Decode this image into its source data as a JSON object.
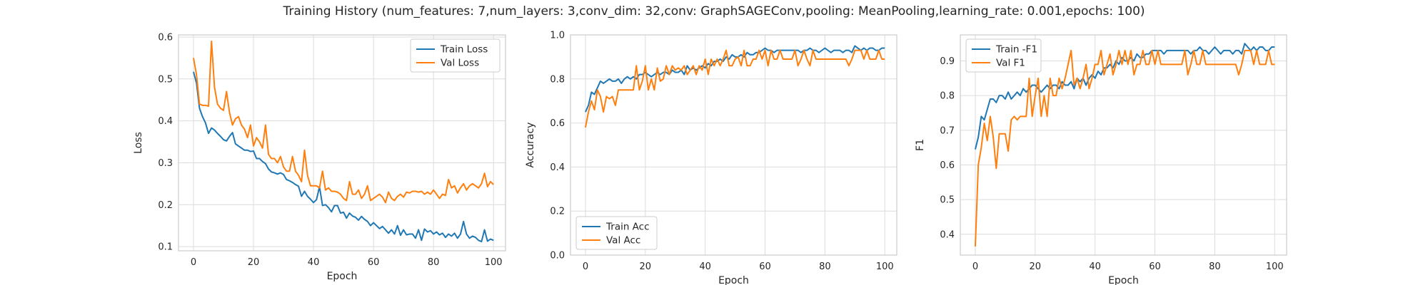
{
  "figure": {
    "suptitle": "Training History (num_features: 7,num_layers: 3,conv_dim: 32,conv: GraphSAGEConv,pooling: MeanPooling,learning_rate: 0.001,epochs: 100)"
  },
  "chart_data": [
    {
      "type": "line",
      "xlabel": "Epoch",
      "ylabel": "Loss",
      "xlim": [
        -5,
        104
      ],
      "ylim": [
        0.09,
        0.605
      ],
      "xticks": [
        0,
        20,
        40,
        60,
        80,
        100
      ],
      "yticks": [
        0.1,
        0.2,
        0.3,
        0.4,
        0.5,
        0.6
      ],
      "grid": true,
      "legend_position": "upper-right",
      "series": [
        {
          "name": "Train Loss",
          "color": "#1f77b4",
          "values": [
            0.517,
            0.49,
            0.43,
            0.41,
            0.395,
            0.37,
            0.383,
            0.378,
            0.37,
            0.363,
            0.355,
            0.352,
            0.363,
            0.372,
            0.345,
            0.34,
            0.335,
            0.33,
            0.33,
            0.327,
            0.328,
            0.31,
            0.31,
            0.303,
            0.298,
            0.285,
            0.278,
            0.276,
            0.273,
            0.276,
            0.272,
            0.26,
            0.257,
            0.253,
            0.248,
            0.244,
            0.22,
            0.232,
            0.22,
            0.213,
            0.205,
            0.212,
            0.243,
            0.198,
            0.2,
            0.193,
            0.183,
            0.198,
            0.198,
            0.18,
            0.182,
            0.168,
            0.18,
            0.173,
            0.17,
            0.163,
            0.172,
            0.165,
            0.16,
            0.15,
            0.157,
            0.15,
            0.143,
            0.148,
            0.14,
            0.132,
            0.14,
            0.13,
            0.15,
            0.127,
            0.14,
            0.128,
            0.13,
            0.13,
            0.12,
            0.14,
            0.115,
            0.142,
            0.135,
            0.138,
            0.13,
            0.135,
            0.128,
            0.132,
            0.122,
            0.13,
            0.125,
            0.132,
            0.12,
            0.13,
            0.16,
            0.13,
            0.12,
            0.125,
            0.122,
            0.115,
            0.112,
            0.14,
            0.113,
            0.118,
            0.115
          ]
        },
        {
          "name": "Val Loss",
          "color": "#ff7f0e",
          "values": [
            0.55,
            0.51,
            0.44,
            0.437,
            0.437,
            0.435,
            0.59,
            0.48,
            0.44,
            0.43,
            0.425,
            0.47,
            0.42,
            0.39,
            0.405,
            0.41,
            0.39,
            0.38,
            0.36,
            0.39,
            0.34,
            0.36,
            0.35,
            0.335,
            0.39,
            0.32,
            0.31,
            0.31,
            0.3,
            0.315,
            0.29,
            0.28,
            0.28,
            0.315,
            0.28,
            0.27,
            0.255,
            0.33,
            0.27,
            0.245,
            0.245,
            0.245,
            0.24,
            0.28,
            0.235,
            0.24,
            0.232,
            0.232,
            0.23,
            0.225,
            0.215,
            0.21,
            0.255,
            0.225,
            0.225,
            0.235,
            0.215,
            0.225,
            0.245,
            0.21,
            0.215,
            0.22,
            0.225,
            0.218,
            0.205,
            0.23,
            0.215,
            0.21,
            0.22,
            0.225,
            0.218,
            0.23,
            0.228,
            0.232,
            0.232,
            0.23,
            0.232,
            0.225,
            0.23,
            0.225,
            0.235,
            0.225,
            0.215,
            0.225,
            0.222,
            0.26,
            0.24,
            0.245,
            0.228,
            0.24,
            0.25,
            0.235,
            0.245,
            0.25,
            0.245,
            0.24,
            0.25,
            0.275,
            0.243,
            0.255,
            0.248
          ]
        }
      ]
    },
    {
      "type": "line",
      "xlabel": "Epoch",
      "ylabel": "Accuracy",
      "xlim": [
        -5,
        104
      ],
      "ylim": [
        0.0,
        1.0
      ],
      "xticks": [
        0,
        20,
        40,
        60,
        80,
        100
      ],
      "yticks": [
        0.0,
        0.2,
        0.4,
        0.6,
        0.8,
        1.0
      ],
      "grid": true,
      "legend_position": "lower-left",
      "series": [
        {
          "name": "Train Acc",
          "color": "#1f77b4",
          "values": [
            0.65,
            0.68,
            0.74,
            0.73,
            0.76,
            0.79,
            0.78,
            0.79,
            0.8,
            0.79,
            0.79,
            0.8,
            0.78,
            0.8,
            0.81,
            0.8,
            0.81,
            0.8,
            0.82,
            0.82,
            0.83,
            0.82,
            0.81,
            0.82,
            0.83,
            0.82,
            0.83,
            0.83,
            0.82,
            0.84,
            0.83,
            0.83,
            0.84,
            0.82,
            0.86,
            0.84,
            0.85,
            0.84,
            0.85,
            0.86,
            0.85,
            0.87,
            0.86,
            0.88,
            0.88,
            0.89,
            0.88,
            0.9,
            0.89,
            0.91,
            0.9,
            0.9,
            0.91,
            0.9,
            0.92,
            0.91,
            0.91,
            0.92,
            0.92,
            0.93,
            0.94,
            0.93,
            0.93,
            0.92,
            0.93,
            0.93,
            0.93,
            0.93,
            0.93,
            0.93,
            0.93,
            0.93,
            0.92,
            0.93,
            0.93,
            0.94,
            0.93,
            0.93,
            0.92,
            0.93,
            0.94,
            0.93,
            0.92,
            0.93,
            0.93,
            0.93,
            0.92,
            0.93,
            0.93,
            0.92,
            0.95,
            0.94,
            0.93,
            0.94,
            0.93,
            0.94,
            0.94,
            0.93,
            0.93,
            0.94,
            0.94
          ]
        },
        {
          "name": "Val Acc",
          "color": "#ff7f0e",
          "values": [
            0.58,
            0.65,
            0.7,
            0.66,
            0.75,
            0.72,
            0.65,
            0.72,
            0.71,
            0.72,
            0.68,
            0.75,
            0.75,
            0.75,
            0.75,
            0.75,
            0.75,
            0.86,
            0.75,
            0.79,
            0.86,
            0.75,
            0.8,
            0.75,
            0.85,
            0.79,
            0.8,
            0.86,
            0.82,
            0.86,
            0.84,
            0.85,
            0.84,
            0.86,
            0.82,
            0.84,
            0.86,
            0.82,
            0.86,
            0.84,
            0.89,
            0.82,
            0.89,
            0.86,
            0.89,
            0.86,
            0.89,
            0.93,
            0.86,
            0.86,
            0.89,
            0.9,
            0.86,
            0.93,
            0.86,
            0.86,
            0.89,
            0.89,
            0.93,
            0.89,
            0.93,
            0.86,
            0.93,
            0.89,
            0.89,
            0.93,
            0.89,
            0.89,
            0.89,
            0.89,
            0.93,
            0.86,
            0.89,
            0.93,
            0.89,
            0.86,
            0.93,
            0.89,
            0.89,
            0.89,
            0.89,
            0.89,
            0.89,
            0.89,
            0.89,
            0.89,
            0.89,
            0.89,
            0.86,
            0.89,
            0.93,
            0.93,
            0.93,
            0.89,
            0.93,
            0.89,
            0.89,
            0.89,
            0.93,
            0.89,
            0.89
          ]
        }
      ]
    },
    {
      "type": "line",
      "xlabel": "Epoch",
      "ylabel": "F1",
      "xlim": [
        -5,
        104
      ],
      "ylim": [
        0.34,
        0.975
      ],
      "xticks": [
        0,
        20,
        40,
        60,
        80,
        100
      ],
      "yticks": [
        0.4,
        0.5,
        0.6,
        0.7,
        0.8,
        0.9
      ],
      "grid": true,
      "legend_position": "upper-left",
      "series": [
        {
          "name": "Train -F1",
          "color": "#1f77b4",
          "values": [
            0.645,
            0.68,
            0.74,
            0.73,
            0.76,
            0.79,
            0.79,
            0.78,
            0.8,
            0.8,
            0.79,
            0.81,
            0.79,
            0.8,
            0.81,
            0.8,
            0.82,
            0.81,
            0.82,
            0.83,
            0.83,
            0.82,
            0.81,
            0.82,
            0.83,
            0.82,
            0.83,
            0.83,
            0.82,
            0.84,
            0.83,
            0.83,
            0.84,
            0.82,
            0.85,
            0.84,
            0.85,
            0.83,
            0.85,
            0.86,
            0.85,
            0.87,
            0.86,
            0.88,
            0.88,
            0.89,
            0.88,
            0.9,
            0.89,
            0.91,
            0.9,
            0.9,
            0.91,
            0.9,
            0.92,
            0.91,
            0.91,
            0.92,
            0.92,
            0.93,
            0.93,
            0.93,
            0.93,
            0.92,
            0.93,
            0.93,
            0.93,
            0.93,
            0.93,
            0.93,
            0.93,
            0.93,
            0.92,
            0.93,
            0.93,
            0.94,
            0.93,
            0.93,
            0.92,
            0.93,
            0.94,
            0.93,
            0.92,
            0.93,
            0.93,
            0.93,
            0.92,
            0.93,
            0.93,
            0.92,
            0.95,
            0.94,
            0.93,
            0.94,
            0.93,
            0.94,
            0.94,
            0.93,
            0.93,
            0.94,
            0.94
          ]
        },
        {
          "name": "Val F1",
          "color": "#ff7f0e",
          "values": [
            0.365,
            0.6,
            0.65,
            0.72,
            0.67,
            0.74,
            0.68,
            0.59,
            0.69,
            0.69,
            0.69,
            0.64,
            0.73,
            0.74,
            0.73,
            0.74,
            0.74,
            0.74,
            0.85,
            0.74,
            0.8,
            0.85,
            0.74,
            0.8,
            0.74,
            0.85,
            0.8,
            0.8,
            0.85,
            0.82,
            0.85,
            0.89,
            0.93,
            0.83,
            0.85,
            0.82,
            0.85,
            0.89,
            0.82,
            0.85,
            0.89,
            0.89,
            0.93,
            0.86,
            0.89,
            0.92,
            0.86,
            0.89,
            0.93,
            0.89,
            0.93,
            0.89,
            0.93,
            0.86,
            0.89,
            0.89,
            0.93,
            0.89,
            0.89,
            0.93,
            0.89,
            0.93,
            0.89,
            0.89,
            0.89,
            0.89,
            0.89,
            0.89,
            0.89,
            0.89,
            0.93,
            0.86,
            0.89,
            0.93,
            0.89,
            0.89,
            0.93,
            0.89,
            0.89,
            0.89,
            0.89,
            0.89,
            0.89,
            0.89,
            0.89,
            0.89,
            0.89,
            0.89,
            0.86,
            0.89,
            0.93,
            0.93,
            0.93,
            0.89,
            0.93,
            0.89,
            0.89,
            0.89,
            0.93,
            0.89,
            0.89
          ]
        }
      ]
    }
  ]
}
